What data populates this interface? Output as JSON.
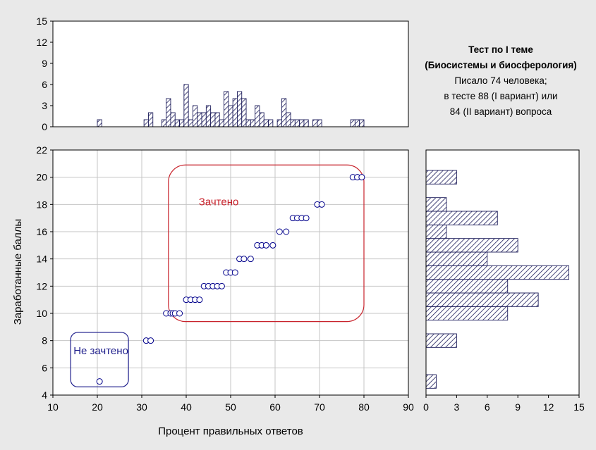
{
  "caption": {
    "line1": "Тест по I теме",
    "line2": "(Биосистемы и биосферология)",
    "line3": "Писало 74 человека;",
    "line4": "в тесте 88 (I вариант) или",
    "line5": "84 (II вариант) вопроса"
  },
  "colors": {
    "background": "#e9e9e9",
    "point": "#00008b",
    "passed_box": "#c8232c",
    "failed_box": "#1f1f8c",
    "bars": "#1c1c5a"
  },
  "chart_data": [
    {
      "type": "scatter",
      "xlabel": "Процент правильных ответов",
      "ylabel": "Заработанные баллы",
      "xlim": [
        10,
        90
      ],
      "ylim": [
        4,
        22
      ],
      "xticks": [
        10,
        20,
        30,
        40,
        50,
        60,
        70,
        80,
        90
      ],
      "yticks": [
        4,
        6,
        8,
        10,
        12,
        14,
        16,
        18,
        20,
        22
      ],
      "grid": true,
      "points": [
        [
          20.5,
          5
        ],
        [
          31,
          8
        ],
        [
          32,
          8
        ],
        [
          35.5,
          10
        ],
        [
          36.5,
          10
        ],
        [
          37,
          10
        ],
        [
          37.5,
          10
        ],
        [
          38.5,
          10
        ],
        [
          40,
          11
        ],
        [
          41,
          11
        ],
        [
          42,
          11
        ],
        [
          43,
          11
        ],
        [
          44,
          12
        ],
        [
          45,
          12
        ],
        [
          46,
          12
        ],
        [
          47,
          12
        ],
        [
          48,
          12
        ],
        [
          49,
          13
        ],
        [
          50,
          13
        ],
        [
          51,
          13
        ],
        [
          52,
          14
        ],
        [
          53,
          14
        ],
        [
          54.5,
          14
        ],
        [
          56,
          15
        ],
        [
          57,
          15
        ],
        [
          58,
          15
        ],
        [
          59.5,
          15
        ],
        [
          61,
          16
        ],
        [
          62.5,
          16
        ],
        [
          64,
          17
        ],
        [
          65,
          17
        ],
        [
          66,
          17
        ],
        [
          67,
          17
        ],
        [
          69.5,
          18
        ],
        [
          70.5,
          18
        ],
        [
          77.5,
          20
        ],
        [
          78.5,
          20
        ],
        [
          79.5,
          20
        ]
      ],
      "annotations": [
        {
          "text": "Зачтено",
          "color": "#c8232c",
          "x_range": [
            36,
            80
          ],
          "y_range": [
            9.4,
            20.9
          ]
        },
        {
          "text": "Не зачтено",
          "color": "#1f1f8c",
          "x_range": [
            14,
            27
          ],
          "y_range": [
            4.6,
            8.6
          ]
        }
      ]
    },
    {
      "type": "bar",
      "orientation": "vertical",
      "hatch": true,
      "ylim": [
        0,
        15
      ],
      "yticks": [
        0,
        3,
        6,
        9,
        12,
        15
      ],
      "x": [
        20.5,
        31,
        32,
        35,
        36,
        37,
        38,
        39,
        40,
        41,
        42,
        43,
        44,
        45,
        46,
        47,
        48,
        49,
        50,
        51,
        52,
        53,
        54,
        55,
        56,
        57,
        58,
        59,
        61,
        62,
        63,
        64,
        65,
        66,
        67,
        69,
        70,
        77.5,
        78.5,
        79.5
      ],
      "values": [
        1,
        1,
        2,
        1,
        4,
        2,
        1,
        1,
        6,
        1,
        3,
        2,
        2,
        3,
        2,
        2,
        1,
        5,
        3,
        4,
        5,
        4,
        1,
        1,
        3,
        2,
        1,
        1,
        1,
        4,
        2,
        1,
        1,
        1,
        1,
        1,
        1,
        1,
        1,
        1
      ]
    },
    {
      "type": "bar",
      "orientation": "horizontal",
      "hatch": true,
      "xlim": [
        0,
        15
      ],
      "xticks": [
        0,
        3,
        6,
        9,
        12,
        15
      ],
      "categories": [
        5,
        8,
        10,
        11,
        12,
        13,
        14,
        15,
        16,
        17,
        18,
        20
      ],
      "values": [
        1,
        3,
        8,
        11,
        8,
        14,
        6,
        9,
        2,
        7,
        2,
        3
      ]
    }
  ]
}
